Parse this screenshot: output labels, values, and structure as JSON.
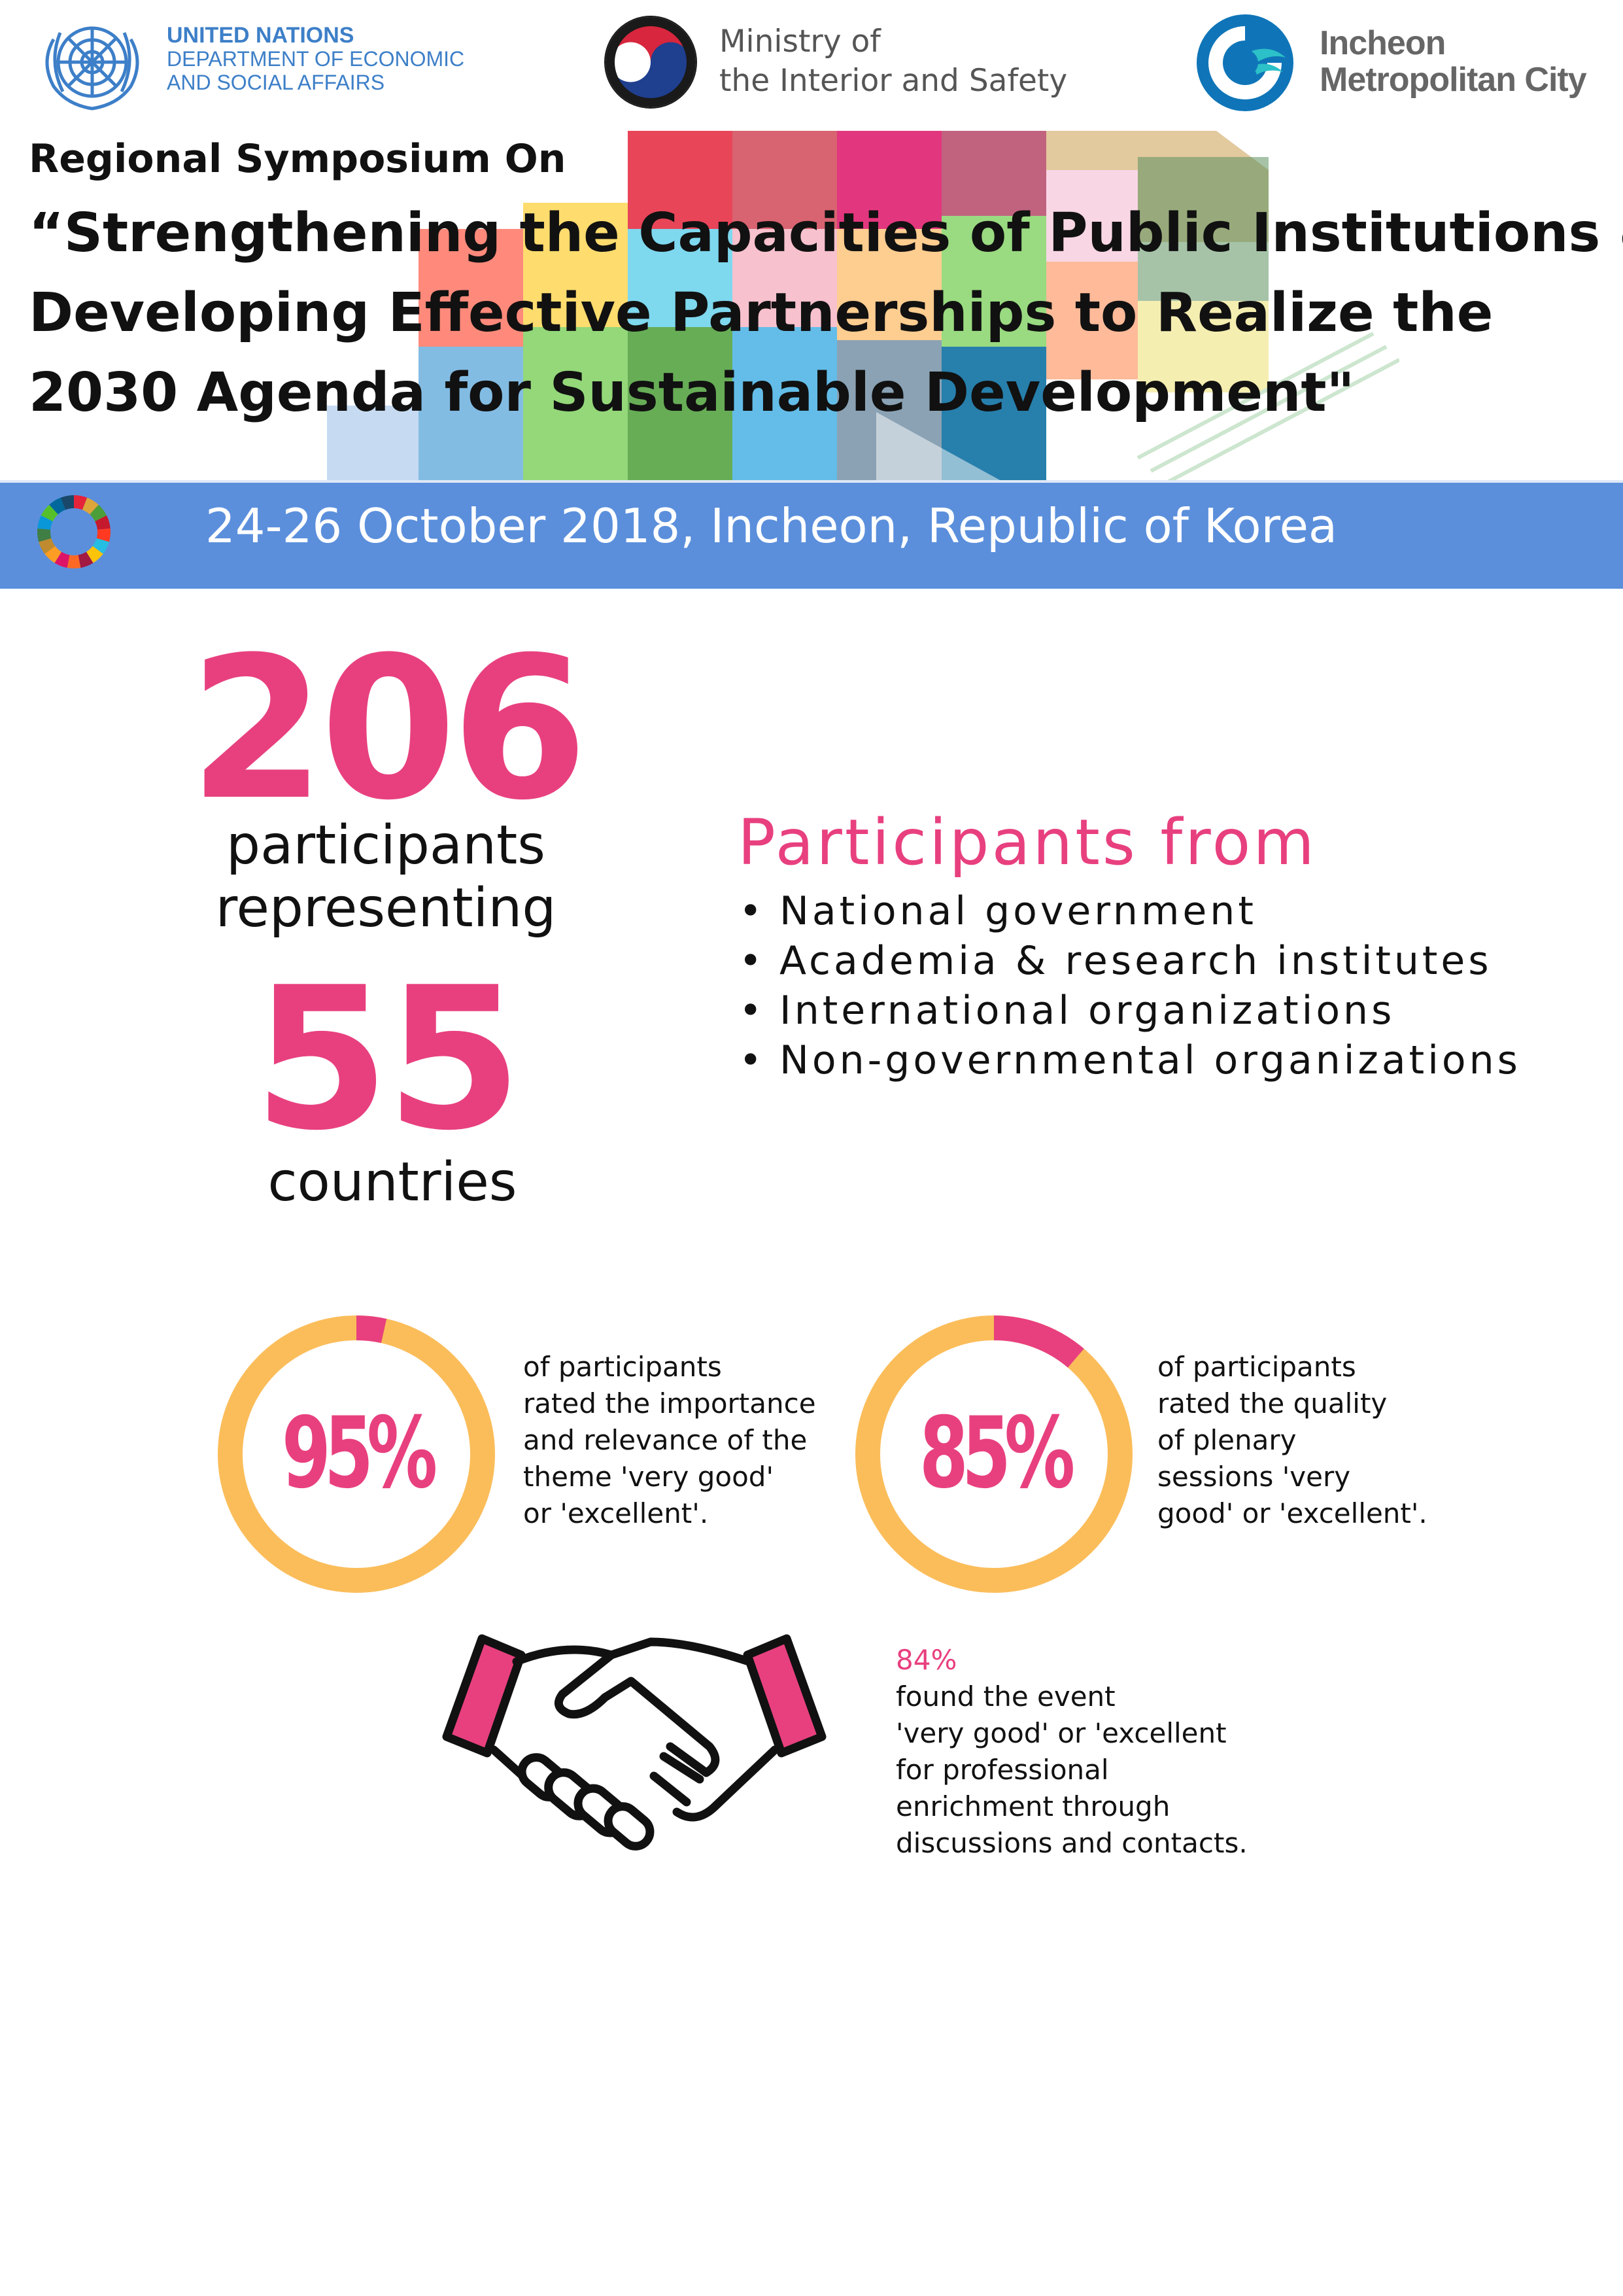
{
  "logos": {
    "un": {
      "line1": "UNITED NATIONS",
      "line2": "DEPARTMENT OF ECONOMIC",
      "line3": "AND SOCIAL AFFAIRS"
    },
    "mois": {
      "line1": "Ministry of",
      "line2": "the Interior and Safety"
    },
    "incheon": {
      "line1": "Incheon",
      "line2": "Metropolitan City"
    }
  },
  "header": {
    "subtitle": "Regional Symposium On",
    "title_lines": [
      "“Strengthening the Capacities of Public Institutions &",
      "Developing Effective Partnerships to Realize the",
      "2030 Agenda for Sustainable Development\""
    ]
  },
  "date_bar": {
    "text": "24-26 October 2018, Incheon, Republic of Korea"
  },
  "stats": {
    "participants_count": "206",
    "participants_line1": "participants",
    "participants_line2": "representing",
    "countries_count": "55",
    "countries_label": "countries"
  },
  "participants_from": {
    "heading": "Participants from",
    "items": [
      "National government",
      "Academia & research institutes",
      "International organizations",
      "Non-governmental organizations"
    ]
  },
  "ratings": [
    {
      "value": 0.95,
      "label": "95%",
      "lines": [
        "of participants",
        "rated the importance",
        "and relevance of the",
        "theme 'very good'",
        "or 'excellent'."
      ]
    },
    {
      "value": 0.85,
      "label": "85%",
      "lines": [
        "of participants",
        "rated the quality",
        "of plenary",
        "sessions 'very",
        "good' or 'excellent'."
      ]
    }
  ],
  "enrichment": {
    "percent": "84%",
    "line1_rest": " found the event",
    "lines": [
      "'very good' or 'excellent",
      "for professional",
      "enrichment through",
      "discussions and contacts."
    ]
  },
  "colors": {
    "pink": "#e8407f",
    "ring_orange": "#fbbd5a",
    "date_bar": "#5b8fdc",
    "un_blue": "#3d7fc8"
  }
}
